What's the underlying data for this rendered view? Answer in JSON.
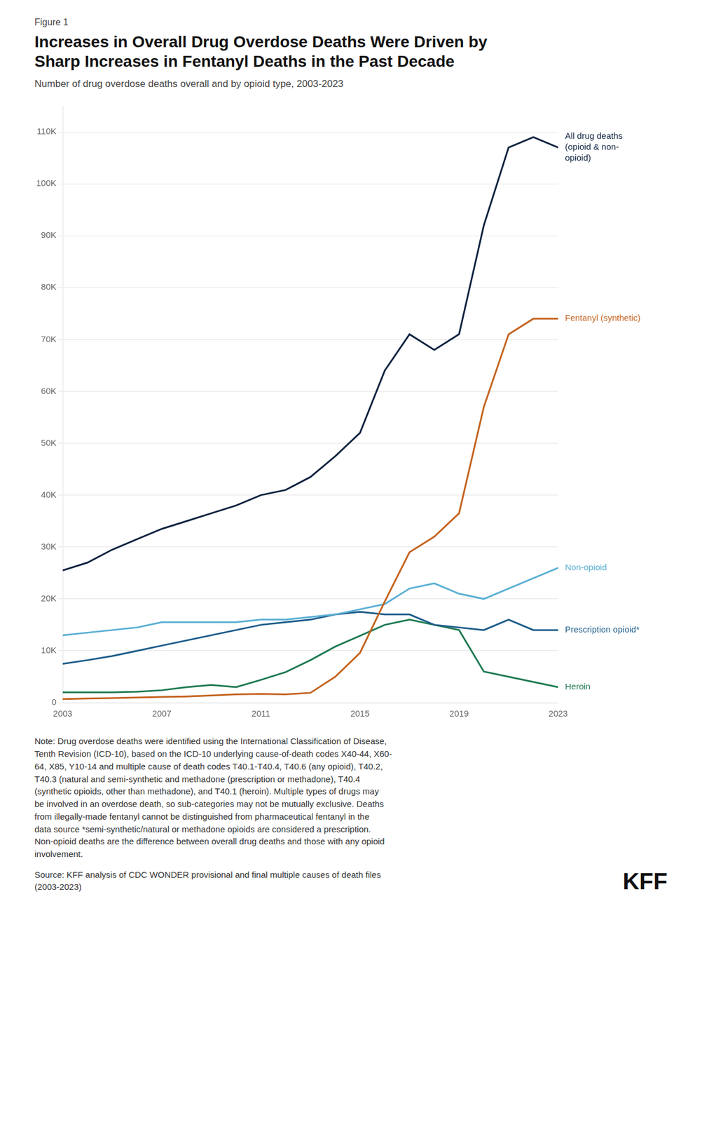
{
  "chart_data": {
    "type": "line",
    "figure_label": "Figure 1",
    "title": "Increases in Overall Drug Overdose Deaths Were Driven by\nSharp Increases in Fentanyl Deaths in the Past Decade",
    "subtitle": "Number of drug overdose deaths overall and by opioid type, 2003-2023",
    "x": [
      2003,
      2004,
      2005,
      2006,
      2007,
      2008,
      2009,
      2010,
      2011,
      2012,
      2013,
      2014,
      2015,
      2016,
      2017,
      2018,
      2019,
      2020,
      2021,
      2022,
      2023
    ],
    "series": [
      {
        "name": "All drug deaths\n(opioid & non-\nopioid)",
        "color": "#0d2240",
        "values": [
          25500,
          27000,
          29500,
          31500,
          33500,
          35000,
          36500,
          38000,
          40000,
          41000,
          43500,
          47500,
          52000,
          64000,
          71000,
          68000,
          71000,
          92000,
          107000,
          109000,
          107000
        ]
      },
      {
        "name": "Fentanyl (synthetic)",
        "color": "#c4621d",
        "values": [
          700,
          800,
          900,
          1000,
          1100,
          1200,
          1400,
          1600,
          1700,
          1600,
          1900,
          5000,
          9600,
          19500,
          29000,
          32000,
          36500,
          57000,
          71000,
          74000,
          74000
        ]
      },
      {
        "name": "Non-opioid",
        "color": "#5aafd4",
        "values": [
          13000,
          13500,
          14000,
          14500,
          15500,
          15500,
          15500,
          15500,
          16000,
          16000,
          16500,
          17000,
          18000,
          19000,
          22000,
          23000,
          21000,
          20000,
          22000,
          24000,
          26000
        ]
      },
      {
        "name": "Prescription opioid*",
        "color": "#1c5c8a",
        "values": [
          7500,
          8200,
          9000,
          10000,
          11000,
          12000,
          13000,
          14000,
          15000,
          15500,
          16000,
          17000,
          17500,
          17000,
          17000,
          15000,
          14500,
          14000,
          16000,
          14000,
          14000
        ]
      },
      {
        "name": "Heroin",
        "color": "#1f7a52",
        "values": [
          2000,
          2000,
          2000,
          2100,
          2400,
          3000,
          3400,
          3000,
          4400,
          5900,
          8200,
          10800,
          12900,
          15000,
          16000,
          15000,
          14000,
          6000,
          5000,
          4000,
          3000
        ]
      }
    ],
    "xlim": [
      2003,
      2023
    ],
    "xticks": [
      2003,
      2007,
      2011,
      2015,
      2019,
      2023
    ],
    "ylim": [
      0,
      115000
    ],
    "yticks": [
      0,
      {
        "value": 10000,
        "label": "10K"
      },
      {
        "value": 20000,
        "label": "20K"
      },
      {
        "value": 30000,
        "label": "30K"
      },
      {
        "value": 40000,
        "label": "40K"
      },
      {
        "value": 50000,
        "label": "50K"
      },
      {
        "value": 60000,
        "label": "60K"
      },
      {
        "value": 70000,
        "label": "70K"
      },
      {
        "value": 80000,
        "label": "80K"
      },
      {
        "value": 90000,
        "label": "90K"
      },
      {
        "value": 100000,
        "label": "100K"
      },
      {
        "value": 110000,
        "label": "110K"
      }
    ],
    "grid": "y",
    "note": "Note: Drug overdose deaths were identified using the International Classification of Disease,\nTenth Revision (ICD-10), based on the ICD-10 underlying cause-of-death codes X40-44, X60-\n64, X85, Y10-14 and multiple cause of death codes T40.1-T40.4, T40.6 (any opioid), T40.2,\nT40.3 (natural and semi-synthetic and methadone (prescription or methadone), T40.4\n(synthetic opioids, other than methadone), and T40.1 (heroin). Multiple types of drugs may\nbe involved in an overdose death, so sub-categories may not be mutually exclusive. Deaths\nfrom illegally-made fentanyl cannot be distinguished from pharmaceutical fentanyl in the\ndata source *semi-synthetic/natural or methadone opioids are considered a prescription.\nNon-opioid deaths are the difference between overall drug deaths and those with any opioid\ninvolvement.",
    "source": "Source: KFF analysis of CDC WONDER provisional and final multiple causes of death files\n(2003-2023)",
    "logo": "KFF"
  }
}
